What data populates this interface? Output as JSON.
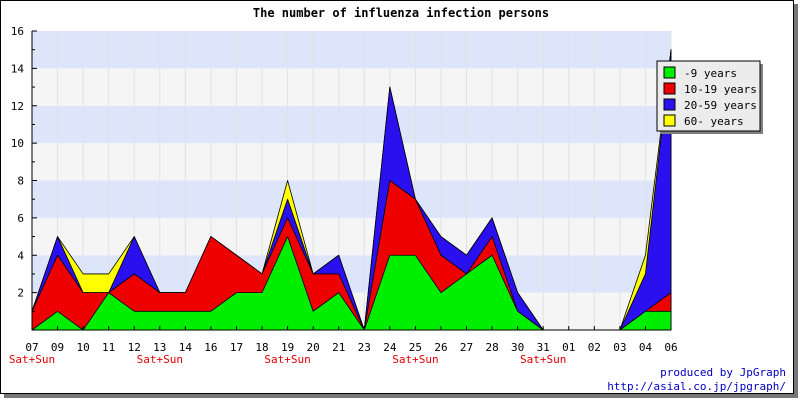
{
  "chart_data": {
    "type": "area",
    "stacked": true,
    "title": "The number of influenza infection persons",
    "categories": [
      "07",
      "09",
      "10",
      "11",
      "12",
      "13",
      "14",
      "16",
      "17",
      "18",
      "19",
      "20",
      "21",
      "23",
      "24",
      "25",
      "26",
      "27",
      "28",
      "30",
      "31",
      "01",
      "02",
      "03",
      "04",
      "06"
    ],
    "weekend_label": "Sat+Sun",
    "weekend_indices": [
      0,
      5,
      10,
      15,
      20
    ],
    "ylim": [
      0,
      16
    ],
    "yticks": [
      2,
      4,
      6,
      8,
      10,
      12,
      14,
      16
    ],
    "grid": true,
    "legend_position": "top-right",
    "series": [
      {
        "name": "-9 years",
        "color": "#00ee00",
        "values": [
          0,
          1,
          0,
          2,
          1,
          1,
          1,
          1,
          2,
          2,
          5,
          1,
          2,
          0,
          4,
          4,
          2,
          3,
          4,
          1,
          0,
          0,
          0,
          0,
          1,
          1
        ]
      },
      {
        "name": "10-19 years",
        "color": "#ee0000",
        "values": [
          1,
          3,
          2,
          0,
          2,
          1,
          1,
          4,
          2,
          1,
          1,
          2,
          1,
          0,
          4,
          3,
          2,
          0,
          1,
          0,
          0,
          0,
          0,
          0,
          0,
          1
        ]
      },
      {
        "name": "20-59 years",
        "color": "#2a10ee",
        "values": [
          0,
          1,
          0,
          0,
          2,
          0,
          0,
          0,
          0,
          0,
          1,
          0,
          1,
          0,
          5,
          0,
          1,
          1,
          1,
          1,
          0,
          0,
          0,
          0,
          2,
          13
        ]
      },
      {
        "name": "60- years",
        "color": "#ffff00",
        "values": [
          0,
          0,
          1,
          1,
          0,
          0,
          0,
          0,
          0,
          0,
          1,
          0,
          0,
          0,
          0,
          0,
          0,
          0,
          0,
          0,
          0,
          0,
          0,
          0,
          1,
          0
        ]
      }
    ]
  },
  "credits": {
    "line1": "produced by JpGraph",
    "line2": "http://asial.co.jp/jpgraph/"
  }
}
